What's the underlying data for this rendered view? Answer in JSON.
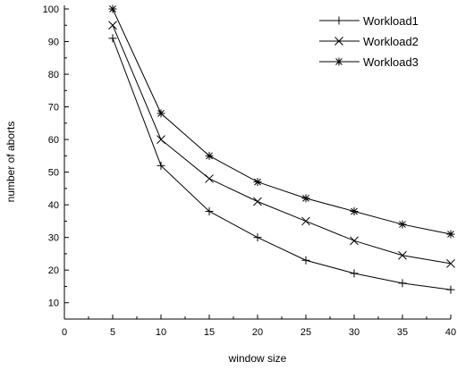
{
  "chart_data": {
    "type": "line",
    "title": "",
    "xlabel": "window size",
    "ylabel": "number of aborts",
    "xlim": [
      0,
      40
    ],
    "ylim": [
      5,
      100
    ],
    "x_ticks": [
      0,
      5,
      10,
      15,
      20,
      25,
      30,
      35,
      40
    ],
    "y_ticks": [
      10,
      20,
      30,
      40,
      50,
      60,
      70,
      80,
      90,
      100
    ],
    "grid": false,
    "legend_position": "top-right",
    "x": [
      5,
      10,
      15,
      20,
      25,
      30,
      35,
      40
    ],
    "series": [
      {
        "name": "Workload1",
        "marker": "plus",
        "values": [
          91,
          52,
          38,
          30,
          23,
          19,
          16,
          14
        ]
      },
      {
        "name": "Workload2",
        "marker": "x",
        "values": [
          95,
          60,
          48,
          41,
          35,
          29,
          24.5,
          22
        ]
      },
      {
        "name": "Workload3",
        "marker": "star",
        "values": [
          100,
          68,
          55,
          47,
          42,
          38,
          34,
          31
        ]
      }
    ]
  }
}
